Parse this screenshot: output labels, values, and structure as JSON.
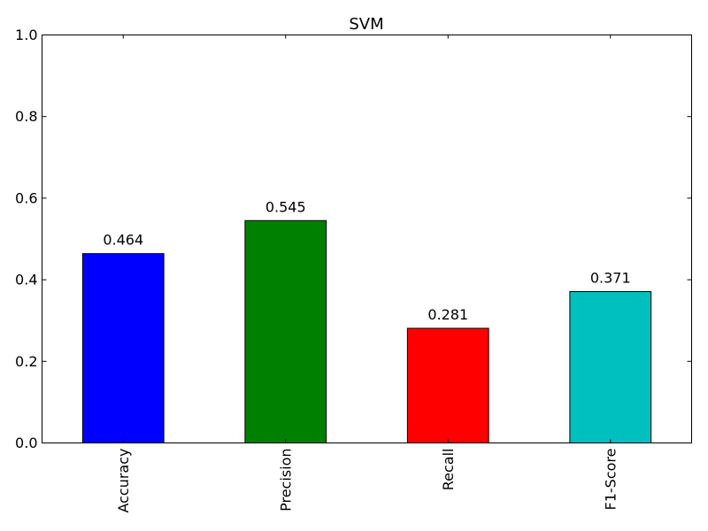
{
  "chart_data": {
    "type": "bar",
    "title": "SVM",
    "xlabel": "",
    "ylabel": "",
    "categories": [
      "Accuracy",
      "Precision",
      "Recall",
      "F1-Score"
    ],
    "values": [
      0.464,
      0.545,
      0.281,
      0.371
    ],
    "value_labels": [
      "0.464",
      "0.545",
      "0.281",
      "0.371"
    ],
    "colors": [
      "#0000ff",
      "#008000",
      "#ff0000",
      "#00bfbf"
    ],
    "ylim": [
      0,
      1.0
    ],
    "yticks": [
      0.0,
      0.2,
      0.4,
      0.6,
      0.8,
      1.0
    ],
    "ytick_labels": [
      "0.0",
      "0.2",
      "0.4",
      "0.6",
      "0.8",
      "1.0"
    ],
    "xtick_rotation": "vertical",
    "grid": false,
    "legend": "none"
  }
}
